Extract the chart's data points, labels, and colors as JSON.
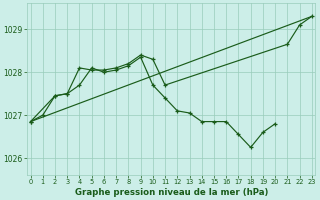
{
  "title": "Graphe pression niveau de la mer (hPa)",
  "background_color": "#cceee8",
  "grid_color": "#99ccbb",
  "line_color": "#1a5c1a",
  "ylim": [
    1025.6,
    1029.6
  ],
  "yticks": [
    1026,
    1027,
    1028,
    1029
  ],
  "xticks": [
    0,
    1,
    2,
    3,
    4,
    5,
    6,
    7,
    8,
    9,
    10,
    11,
    12,
    13,
    14,
    15,
    16,
    17,
    18,
    19,
    20,
    21,
    22,
    23
  ],
  "xlim": [
    -0.3,
    23.3
  ],
  "series_diagonal": {
    "x": [
      0,
      23
    ],
    "y": [
      1026.85,
      1029.3
    ]
  },
  "series_upper": {
    "x": [
      0,
      2,
      3,
      4,
      5,
      6,
      7,
      8,
      9,
      10,
      11,
      21,
      22,
      23
    ],
    "y": [
      1026.85,
      1027.45,
      1027.5,
      1028.1,
      1028.05,
      1028.05,
      1028.1,
      1028.2,
      1028.4,
      1028.3,
      1027.7,
      1028.65,
      1029.1,
      1029.3
    ]
  },
  "series_lower": {
    "x": [
      0,
      1,
      2,
      3,
      4,
      5,
      6,
      7,
      8,
      9,
      10,
      11,
      12,
      13,
      14,
      15,
      16,
      17,
      18,
      19,
      20
    ],
    "y": [
      1026.85,
      1027.0,
      1027.45,
      1027.5,
      1027.7,
      1028.1,
      1028.0,
      1028.05,
      1028.15,
      1028.35,
      1027.7,
      1027.4,
      1027.1,
      1027.05,
      1026.85,
      1026.85,
      1026.85,
      1026.55,
      1026.25,
      1026.6,
      1026.8
    ]
  }
}
